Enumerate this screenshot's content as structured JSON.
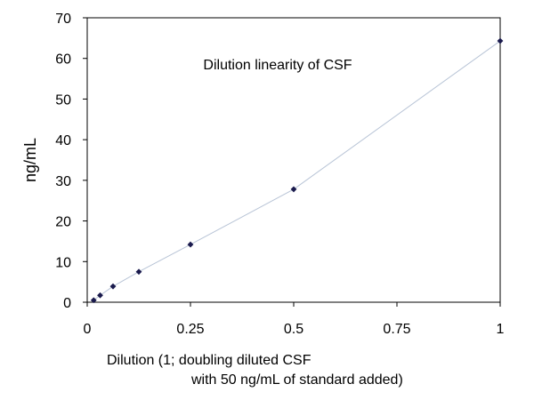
{
  "chart_data": {
    "type": "scatter",
    "title": "Dilution linearity of CSF",
    "xlabel_lines": [
      "Dilution (1; doubling diluted CSF",
      "with 50 ng/mL of standard added)"
    ],
    "ylabel": "ng/mL",
    "xlim": [
      0,
      1
    ],
    "ylim": [
      0,
      70
    ],
    "x_ticks": [
      0,
      0.25,
      0.5,
      0.75,
      1
    ],
    "x_tick_labels": [
      "0",
      "0.25",
      "0.5",
      "0.75",
      "1"
    ],
    "y_ticks": [
      0,
      10,
      20,
      30,
      40,
      50,
      60,
      70
    ],
    "y_tick_labels": [
      "0",
      "10",
      "20",
      "30",
      "40",
      "50",
      "60",
      "70"
    ],
    "grid": false,
    "legend": "none",
    "series": [
      {
        "x": [
          0.015625,
          0.03125,
          0.0625,
          0.125,
          0.25,
          0.5,
          1
        ],
        "y": [
          0.5,
          1.7,
          3.9,
          7.5,
          14.2,
          27.8,
          64.3
        ],
        "marker": "diamond",
        "connect_line": true,
        "marker_color": "#1a1a4d",
        "line_color": "#b8c4d6"
      }
    ],
    "axis_color": "#000000"
  }
}
